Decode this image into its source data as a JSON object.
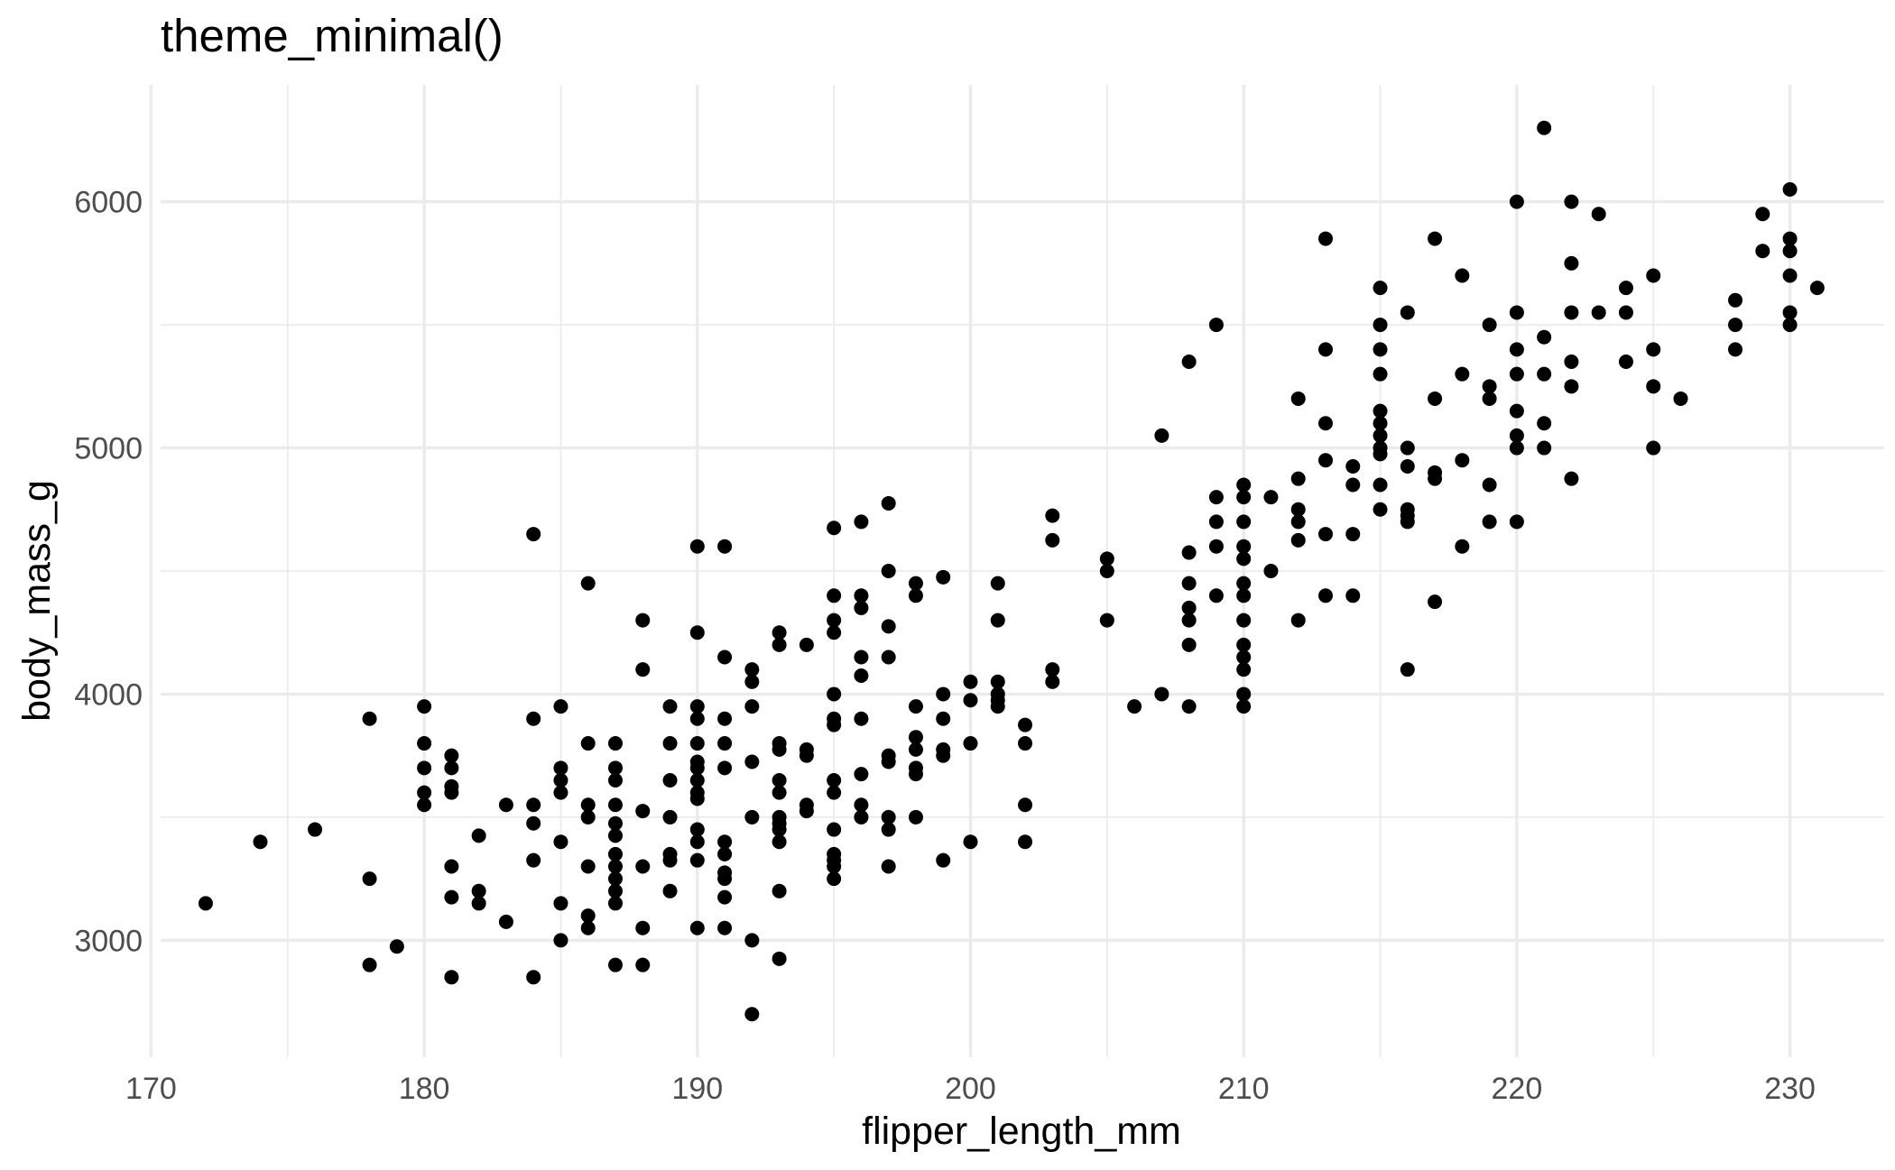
{
  "chart_data": {
    "type": "scatter",
    "title": "theme_minimal()",
    "xlabel": "flipper_length_mm",
    "ylabel": "body_mass_g",
    "xlim": [
      170.35,
      233.45
    ],
    "ylim": [
      2525,
      6475
    ],
    "x_ticks": [
      170,
      180,
      190,
      200,
      210,
      220,
      230
    ],
    "y_ticks": [
      3000,
      4000,
      5000,
      6000
    ],
    "x_tick_labels": [
      "170",
      "180",
      "190",
      "200",
      "210",
      "220",
      "230"
    ],
    "y_tick_labels": [
      "3000",
      "4000",
      "5000",
      "6000"
    ],
    "x_minor_ticks": [
      175,
      185,
      195,
      205,
      215,
      225
    ],
    "y_minor_ticks": [
      3500,
      4500,
      5500
    ],
    "grid": true,
    "legend": "none",
    "point_color": "#000000",
    "points": [
      [
        172,
        3150
      ],
      [
        174,
        3400
      ],
      [
        176,
        3450
      ],
      [
        178,
        3900
      ],
      [
        178,
        3250
      ],
      [
        178,
        2900
      ],
      [
        179,
        2975
      ],
      [
        180,
        3950
      ],
      [
        180,
        3800
      ],
      [
        180,
        3700
      ],
      [
        180,
        3600
      ],
      [
        180,
        3550
      ],
      [
        181,
        3750
      ],
      [
        181,
        3700
      ],
      [
        181,
        3625
      ],
      [
        181,
        3600
      ],
      [
        181,
        3300
      ],
      [
        181,
        3175
      ],
      [
        181,
        2850
      ],
      [
        182,
        3425
      ],
      [
        182,
        3200
      ],
      [
        182,
        3150
      ],
      [
        183,
        3550
      ],
      [
        183,
        3075
      ],
      [
        184,
        4650
      ],
      [
        184,
        3900
      ],
      [
        184,
        3550
      ],
      [
        184,
        3475
      ],
      [
        184,
        3325
      ],
      [
        184,
        2850
      ],
      [
        185,
        3950
      ],
      [
        185,
        3700
      ],
      [
        185,
        3650
      ],
      [
        185,
        3600
      ],
      [
        185,
        3400
      ],
      [
        185,
        3150
      ],
      [
        185,
        3000
      ],
      [
        186,
        4450
      ],
      [
        186,
        3800
      ],
      [
        186,
        3550
      ],
      [
        186,
        3500
      ],
      [
        186,
        3300
      ],
      [
        186,
        3100
      ],
      [
        186,
        3050
      ],
      [
        187,
        3800
      ],
      [
        187,
        3700
      ],
      [
        187,
        3650
      ],
      [
        187,
        3550
      ],
      [
        187,
        3475
      ],
      [
        187,
        3425
      ],
      [
        187,
        3350
      ],
      [
        187,
        3300
      ],
      [
        187,
        3250
      ],
      [
        187,
        3200
      ],
      [
        187,
        3150
      ],
      [
        187,
        2900
      ],
      [
        188,
        4300
      ],
      [
        188,
        4100
      ],
      [
        188,
        3525
      ],
      [
        188,
        3300
      ],
      [
        188,
        3050
      ],
      [
        188,
        2900
      ],
      [
        189,
        3950
      ],
      [
        189,
        3800
      ],
      [
        189,
        3650
      ],
      [
        189,
        3500
      ],
      [
        189,
        3350
      ],
      [
        189,
        3325
      ],
      [
        189,
        3200
      ],
      [
        190,
        4600
      ],
      [
        190,
        4250
      ],
      [
        190,
        3950
      ],
      [
        190,
        3900
      ],
      [
        190,
        3800
      ],
      [
        190,
        3725
      ],
      [
        190,
        3700
      ],
      [
        190,
        3650
      ],
      [
        190,
        3600
      ],
      [
        190,
        3575
      ],
      [
        190,
        3450
      ],
      [
        190,
        3400
      ],
      [
        190,
        3325
      ],
      [
        190,
        3050
      ],
      [
        191,
        4600
      ],
      [
        191,
        4150
      ],
      [
        191,
        3900
      ],
      [
        191,
        3800
      ],
      [
        191,
        3700
      ],
      [
        191,
        3400
      ],
      [
        191,
        3350
      ],
      [
        191,
        3275
      ],
      [
        191,
        3250
      ],
      [
        191,
        3175
      ],
      [
        191,
        3050
      ],
      [
        192,
        4100
      ],
      [
        192,
        4050
      ],
      [
        192,
        3950
      ],
      [
        192,
        3725
      ],
      [
        192,
        3500
      ],
      [
        192,
        3000
      ],
      [
        192,
        2700
      ],
      [
        193,
        4250
      ],
      [
        193,
        4200
      ],
      [
        193,
        3800
      ],
      [
        193,
        3775
      ],
      [
        193,
        3650
      ],
      [
        193,
        3600
      ],
      [
        193,
        3500
      ],
      [
        193,
        3475
      ],
      [
        193,
        3450
      ],
      [
        193,
        3400
      ],
      [
        193,
        3200
      ],
      [
        193,
        2925
      ],
      [
        194,
        4200
      ],
      [
        194,
        3775
      ],
      [
        194,
        3750
      ],
      [
        194,
        3550
      ],
      [
        194,
        3525
      ],
      [
        195,
        4675
      ],
      [
        195,
        4400
      ],
      [
        195,
        4300
      ],
      [
        195,
        4250
      ],
      [
        195,
        4000
      ],
      [
        195,
        3900
      ],
      [
        195,
        3875
      ],
      [
        195,
        3650
      ],
      [
        195,
        3600
      ],
      [
        195,
        3450
      ],
      [
        195,
        3350
      ],
      [
        195,
        3325
      ],
      [
        195,
        3300
      ],
      [
        195,
        3250
      ],
      [
        196,
        4700
      ],
      [
        196,
        4400
      ],
      [
        196,
        4350
      ],
      [
        196,
        4150
      ],
      [
        196,
        4075
      ],
      [
        196,
        3900
      ],
      [
        196,
        3675
      ],
      [
        196,
        3550
      ],
      [
        196,
        3500
      ],
      [
        197,
        4775
      ],
      [
        197,
        4500
      ],
      [
        197,
        4275
      ],
      [
        197,
        4150
      ],
      [
        197,
        3750
      ],
      [
        197,
        3725
      ],
      [
        197,
        3500
      ],
      [
        197,
        3450
      ],
      [
        197,
        3300
      ],
      [
        198,
        4450
      ],
      [
        198,
        4400
      ],
      [
        198,
        3950
      ],
      [
        198,
        3825
      ],
      [
        198,
        3775
      ],
      [
        198,
        3700
      ],
      [
        198,
        3675
      ],
      [
        198,
        3500
      ],
      [
        199,
        4475
      ],
      [
        199,
        4000
      ],
      [
        199,
        3900
      ],
      [
        199,
        3775
      ],
      [
        199,
        3750
      ],
      [
        199,
        3325
      ],
      [
        200,
        4050
      ],
      [
        200,
        3975
      ],
      [
        200,
        3800
      ],
      [
        200,
        3400
      ],
      [
        201,
        4450
      ],
      [
        201,
        4300
      ],
      [
        201,
        4050
      ],
      [
        201,
        4000
      ],
      [
        201,
        3975
      ],
      [
        201,
        3950
      ],
      [
        202,
        3875
      ],
      [
        202,
        3800
      ],
      [
        202,
        3550
      ],
      [
        202,
        3400
      ],
      [
        203,
        4725
      ],
      [
        203,
        4625
      ],
      [
        203,
        4100
      ],
      [
        203,
        4050
      ],
      [
        205,
        4550
      ],
      [
        205,
        4500
      ],
      [
        205,
        4300
      ],
      [
        206,
        3950
      ],
      [
        207,
        5050
      ],
      [
        207,
        4000
      ],
      [
        208,
        5350
      ],
      [
        208,
        4575
      ],
      [
        208,
        4450
      ],
      [
        208,
        4350
      ],
      [
        208,
        4300
      ],
      [
        208,
        4200
      ],
      [
        208,
        3950
      ],
      [
        209,
        5500
      ],
      [
        209,
        4800
      ],
      [
        209,
        4700
      ],
      [
        209,
        4600
      ],
      [
        209,
        4400
      ],
      [
        210,
        4850
      ],
      [
        210,
        4800
      ],
      [
        210,
        4700
      ],
      [
        210,
        4600
      ],
      [
        210,
        4550
      ],
      [
        210,
        4450
      ],
      [
        210,
        4400
      ],
      [
        210,
        4300
      ],
      [
        210,
        4200
      ],
      [
        210,
        4150
      ],
      [
        210,
        4100
      ],
      [
        210,
        4000
      ],
      [
        210,
        3950
      ],
      [
        211,
        4800
      ],
      [
        211,
        4500
      ],
      [
        212,
        5200
      ],
      [
        212,
        4875
      ],
      [
        212,
        4750
      ],
      [
        212,
        4700
      ],
      [
        212,
        4625
      ],
      [
        212,
        4300
      ],
      [
        213,
        5850
      ],
      [
        213,
        5400
      ],
      [
        213,
        5100
      ],
      [
        213,
        4950
      ],
      [
        213,
        4650
      ],
      [
        213,
        4400
      ],
      [
        214,
        4925
      ],
      [
        214,
        4850
      ],
      [
        214,
        4650
      ],
      [
        214,
        4400
      ],
      [
        215,
        5650
      ],
      [
        215,
        5500
      ],
      [
        215,
        5400
      ],
      [
        215,
        5300
      ],
      [
        215,
        5150
      ],
      [
        215,
        5100
      ],
      [
        215,
        5050
      ],
      [
        215,
        5000
      ],
      [
        215,
        4975
      ],
      [
        215,
        4850
      ],
      [
        215,
        4750
      ],
      [
        216,
        5550
      ],
      [
        216,
        5000
      ],
      [
        216,
        4925
      ],
      [
        216,
        4750
      ],
      [
        216,
        4725
      ],
      [
        216,
        4700
      ],
      [
        216,
        4100
      ],
      [
        217,
        5850
      ],
      [
        217,
        5200
      ],
      [
        217,
        4900
      ],
      [
        217,
        4875
      ],
      [
        217,
        4375
      ],
      [
        218,
        5700
      ],
      [
        218,
        5300
      ],
      [
        218,
        4950
      ],
      [
        218,
        4600
      ],
      [
        219,
        5500
      ],
      [
        219,
        5250
      ],
      [
        219,
        5200
      ],
      [
        219,
        4850
      ],
      [
        219,
        4700
      ],
      [
        220,
        6000
      ],
      [
        220,
        5550
      ],
      [
        220,
        5400
      ],
      [
        220,
        5300
      ],
      [
        220,
        5150
      ],
      [
        220,
        5050
      ],
      [
        220,
        5000
      ],
      [
        220,
        4700
      ],
      [
        221,
        6300
      ],
      [
        221,
        5450
      ],
      [
        221,
        5300
      ],
      [
        221,
        5100
      ],
      [
        221,
        5000
      ],
      [
        222,
        6000
      ],
      [
        222,
        5750
      ],
      [
        222,
        5550
      ],
      [
        222,
        5350
      ],
      [
        222,
        5250
      ],
      [
        222,
        4875
      ],
      [
        223,
        5950
      ],
      [
        223,
        5550
      ],
      [
        224,
        5650
      ],
      [
        224,
        5550
      ],
      [
        224,
        5350
      ],
      [
        225,
        5700
      ],
      [
        225,
        5400
      ],
      [
        225,
        5250
      ],
      [
        225,
        5000
      ],
      [
        226,
        5200
      ],
      [
        228,
        5600
      ],
      [
        228,
        5500
      ],
      [
        228,
        5400
      ],
      [
        229,
        5950
      ],
      [
        229,
        5800
      ],
      [
        230,
        6050
      ],
      [
        230,
        5850
      ],
      [
        230,
        5800
      ],
      [
        230,
        5700
      ],
      [
        230,
        5550
      ],
      [
        230,
        5500
      ],
      [
        231,
        5650
      ]
    ]
  }
}
